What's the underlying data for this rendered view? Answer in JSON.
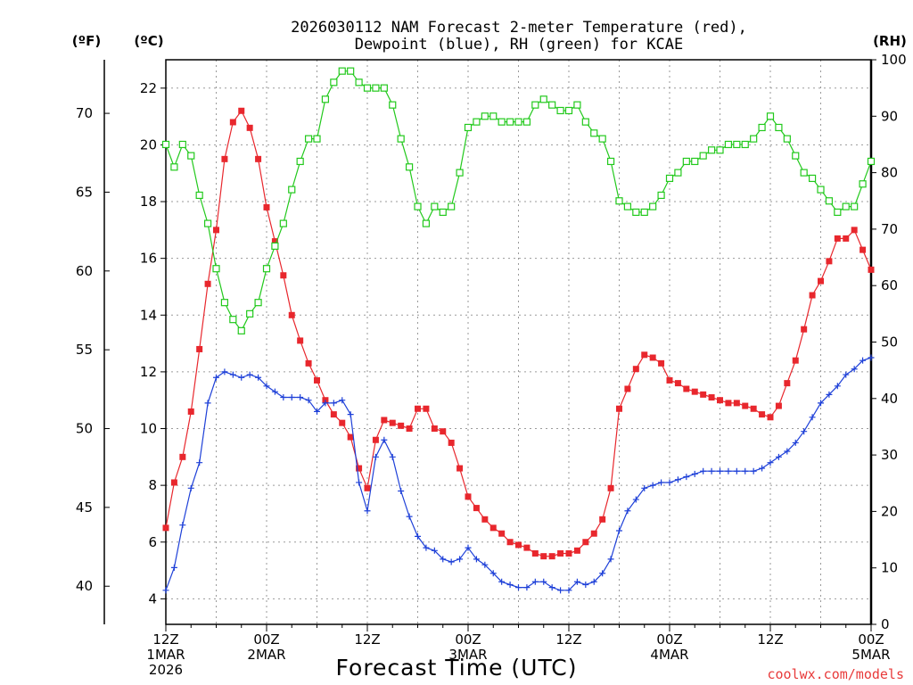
{
  "chart_data": {
    "type": "line",
    "title_line1": "2026030112 NAM Forecast 2-meter Temperature (red),",
    "title_line2": "Dewpoint (blue), RH (green) for KCAE",
    "xlabel": "Forecast Time (UTC)",
    "credit": "coolwx.com/models",
    "axes": {
      "fahrenheit": {
        "label": "(ºF)",
        "ticks": [
          40,
          45,
          50,
          55,
          60,
          65,
          70
        ]
      },
      "celsius": {
        "label": "(ºC)",
        "range": [
          3.1,
          23.0
        ],
        "ticks": [
          4,
          6,
          8,
          10,
          12,
          14,
          16,
          18,
          20,
          22
        ]
      },
      "rh": {
        "label": "(RH)",
        "range": [
          0,
          100
        ],
        "ticks": [
          0,
          10,
          20,
          30,
          40,
          50,
          60,
          70,
          80,
          90,
          100
        ]
      },
      "x": {
        "range_hours": [
          0,
          84
        ],
        "ticks": [
          {
            "hour": 0,
            "lines": [
              "12Z",
              "1MAR",
              "2026"
            ]
          },
          {
            "hour": 12,
            "lines": [
              "00Z",
              "2MAR"
            ]
          },
          {
            "hour": 24,
            "lines": [
              "12Z"
            ]
          },
          {
            "hour": 36,
            "lines": [
              "00Z",
              "3MAR"
            ]
          },
          {
            "hour": 48,
            "lines": [
              "12Z"
            ]
          },
          {
            "hour": 60,
            "lines": [
              "00Z",
              "4MAR"
            ]
          },
          {
            "hour": 72,
            "lines": [
              "12Z"
            ]
          },
          {
            "hour": 84,
            "lines": [
              "00Z",
              "5MAR"
            ]
          }
        ]
      }
    },
    "grid": true,
    "series": [
      {
        "name": "Temperature",
        "color": "#e8272d",
        "marker": "filled-square",
        "points": [
          [
            0,
            6.5
          ],
          [
            1,
            8.1
          ],
          [
            2,
            9.0
          ],
          [
            3,
            10.6
          ],
          [
            4,
            12.8
          ],
          [
            5,
            15.1
          ],
          [
            6,
            17.0
          ],
          [
            7,
            19.5
          ],
          [
            8,
            20.8
          ],
          [
            9,
            21.2
          ],
          [
            10,
            20.6
          ],
          [
            11,
            19.5
          ],
          [
            12,
            17.8
          ],
          [
            13,
            16.6
          ],
          [
            14,
            15.4
          ],
          [
            15,
            14.0
          ],
          [
            16,
            13.1
          ],
          [
            17,
            12.3
          ],
          [
            18,
            11.7
          ],
          [
            19,
            11.0
          ],
          [
            20,
            10.5
          ],
          [
            21,
            10.2
          ],
          [
            22,
            9.7
          ],
          [
            23,
            8.6
          ],
          [
            24,
            7.9
          ],
          [
            25,
            9.6
          ],
          [
            26,
            10.3
          ],
          [
            27,
            10.2
          ],
          [
            28,
            10.1
          ],
          [
            29,
            10.0
          ],
          [
            30,
            10.7
          ],
          [
            31,
            10.7
          ],
          [
            32,
            10.0
          ],
          [
            33,
            9.9
          ],
          [
            34,
            9.5
          ],
          [
            35,
            8.6
          ],
          [
            36,
            7.6
          ],
          [
            37,
            7.2
          ],
          [
            38,
            6.8
          ],
          [
            39,
            6.5
          ],
          [
            40,
            6.3
          ],
          [
            41,
            6.0
          ],
          [
            42,
            5.9
          ],
          [
            43,
            5.8
          ],
          [
            44,
            5.6
          ],
          [
            45,
            5.5
          ],
          [
            46,
            5.5
          ],
          [
            47,
            5.6
          ],
          [
            48,
            5.6
          ],
          [
            49,
            5.7
          ],
          [
            50,
            6.0
          ],
          [
            51,
            6.3
          ],
          [
            52,
            6.8
          ],
          [
            53,
            7.9
          ],
          [
            54,
            10.7
          ],
          [
            55,
            11.4
          ],
          [
            56,
            12.1
          ],
          [
            57,
            12.6
          ],
          [
            58,
            12.5
          ],
          [
            59,
            12.3
          ],
          [
            60,
            11.7
          ],
          [
            61,
            11.6
          ],
          [
            62,
            11.4
          ],
          [
            63,
            11.3
          ],
          [
            64,
            11.2
          ],
          [
            65,
            11.1
          ],
          [
            66,
            11.0
          ],
          [
            67,
            10.9
          ],
          [
            68,
            10.9
          ],
          [
            69,
            10.8
          ],
          [
            70,
            10.7
          ],
          [
            71,
            10.5
          ],
          [
            72,
            10.4
          ],
          [
            73,
            10.8
          ],
          [
            74,
            11.6
          ],
          [
            75,
            12.4
          ],
          [
            76,
            13.5
          ],
          [
            77,
            14.7
          ],
          [
            78,
            15.2
          ],
          [
            79,
            15.9
          ],
          [
            80,
            16.7
          ],
          [
            81,
            16.7
          ],
          [
            82,
            17.0
          ],
          [
            83,
            16.3
          ],
          [
            84,
            15.6
          ]
        ]
      },
      {
        "name": "Dewpoint",
        "color": "#1e40d8",
        "marker": "plus",
        "points": [
          [
            0,
            4.3
          ],
          [
            1,
            5.1
          ],
          [
            2,
            6.6
          ],
          [
            3,
            7.9
          ],
          [
            4,
            8.8
          ],
          [
            5,
            10.9
          ],
          [
            6,
            11.8
          ],
          [
            7,
            12.0
          ],
          [
            8,
            11.9
          ],
          [
            9,
            11.8
          ],
          [
            10,
            11.9
          ],
          [
            11,
            11.8
          ],
          [
            12,
            11.5
          ],
          [
            13,
            11.3
          ],
          [
            14,
            11.1
          ],
          [
            15,
            11.1
          ],
          [
            16,
            11.1
          ],
          [
            17,
            11.0
          ],
          [
            18,
            10.6
          ],
          [
            19,
            10.9
          ],
          [
            20,
            10.9
          ],
          [
            21,
            11.0
          ],
          [
            22,
            10.5
          ],
          [
            23,
            8.1
          ],
          [
            24,
            7.1
          ],
          [
            25,
            9.0
          ],
          [
            26,
            9.6
          ],
          [
            27,
            9.0
          ],
          [
            28,
            7.8
          ],
          [
            29,
            6.9
          ],
          [
            30,
            6.2
          ],
          [
            31,
            5.8
          ],
          [
            32,
            5.7
          ],
          [
            33,
            5.4
          ],
          [
            34,
            5.3
          ],
          [
            35,
            5.4
          ],
          [
            36,
            5.8
          ],
          [
            37,
            5.4
          ],
          [
            38,
            5.2
          ],
          [
            39,
            4.9
          ],
          [
            40,
            4.6
          ],
          [
            41,
            4.5
          ],
          [
            42,
            4.4
          ],
          [
            43,
            4.4
          ],
          [
            44,
            4.6
          ],
          [
            45,
            4.6
          ],
          [
            46,
            4.4
          ],
          [
            47,
            4.3
          ],
          [
            48,
            4.3
          ],
          [
            49,
            4.6
          ],
          [
            50,
            4.5
          ],
          [
            51,
            4.6
          ],
          [
            52,
            4.9
          ],
          [
            53,
            5.4
          ],
          [
            54,
            6.4
          ],
          [
            55,
            7.1
          ],
          [
            56,
            7.5
          ],
          [
            57,
            7.9
          ],
          [
            58,
            8.0
          ],
          [
            59,
            8.1
          ],
          [
            60,
            8.1
          ],
          [
            61,
            8.2
          ],
          [
            62,
            8.3
          ],
          [
            63,
            8.4
          ],
          [
            64,
            8.5
          ],
          [
            65,
            8.5
          ],
          [
            66,
            8.5
          ],
          [
            67,
            8.5
          ],
          [
            68,
            8.5
          ],
          [
            69,
            8.5
          ],
          [
            70,
            8.5
          ],
          [
            71,
            8.6
          ],
          [
            72,
            8.8
          ],
          [
            73,
            9.0
          ],
          [
            74,
            9.2
          ],
          [
            75,
            9.5
          ],
          [
            76,
            9.9
          ],
          [
            77,
            10.4
          ],
          [
            78,
            10.9
          ],
          [
            79,
            11.2
          ],
          [
            80,
            11.5
          ],
          [
            81,
            11.9
          ],
          [
            82,
            12.1
          ],
          [
            83,
            12.4
          ],
          [
            84,
            12.5
          ]
        ]
      },
      {
        "name": "RH",
        "color": "#22c91c",
        "marker": "open-square",
        "points": [
          [
            0,
            85
          ],
          [
            1,
            81
          ],
          [
            2,
            85
          ],
          [
            3,
            83
          ],
          [
            4,
            76
          ],
          [
            5,
            71
          ],
          [
            6,
            63
          ],
          [
            7,
            57
          ],
          [
            8,
            54
          ],
          [
            9,
            52
          ],
          [
            10,
            55
          ],
          [
            11,
            57
          ],
          [
            12,
            63
          ],
          [
            13,
            67
          ],
          [
            14,
            71
          ],
          [
            15,
            77
          ],
          [
            16,
            82
          ],
          [
            17,
            86
          ],
          [
            18,
            86
          ],
          [
            19,
            93
          ],
          [
            20,
            96
          ],
          [
            21,
            98
          ],
          [
            22,
            98
          ],
          [
            23,
            96
          ],
          [
            24,
            95
          ],
          [
            25,
            95
          ],
          [
            26,
            95
          ],
          [
            27,
            92
          ],
          [
            28,
            86
          ],
          [
            29,
            81
          ],
          [
            30,
            74
          ],
          [
            31,
            71
          ],
          [
            32,
            74
          ],
          [
            33,
            73
          ],
          [
            34,
            74
          ],
          [
            35,
            80
          ],
          [
            36,
            88
          ],
          [
            37,
            89
          ],
          [
            38,
            90
          ],
          [
            39,
            90
          ],
          [
            40,
            89
          ],
          [
            41,
            89
          ],
          [
            42,
            89
          ],
          [
            43,
            89
          ],
          [
            44,
            92
          ],
          [
            45,
            93
          ],
          [
            46,
            92
          ],
          [
            47,
            91
          ],
          [
            48,
            91
          ],
          [
            49,
            92
          ],
          [
            50,
            89
          ],
          [
            51,
            87
          ],
          [
            52,
            86
          ],
          [
            53,
            82
          ],
          [
            54,
            75
          ],
          [
            55,
            74
          ],
          [
            56,
            73
          ],
          [
            57,
            73
          ],
          [
            58,
            74
          ],
          [
            59,
            76
          ],
          [
            60,
            79
          ],
          [
            61,
            80
          ],
          [
            62,
            82
          ],
          [
            63,
            82
          ],
          [
            64,
            83
          ],
          [
            65,
            84
          ],
          [
            66,
            84
          ],
          [
            67,
            85
          ],
          [
            68,
            85
          ],
          [
            69,
            85
          ],
          [
            70,
            86
          ],
          [
            71,
            88
          ],
          [
            72,
            90
          ],
          [
            73,
            88
          ],
          [
            74,
            86
          ],
          [
            75,
            83
          ],
          [
            76,
            80
          ],
          [
            77,
            79
          ],
          [
            78,
            77
          ],
          [
            79,
            75
          ],
          [
            80,
            73
          ],
          [
            81,
            74
          ],
          [
            82,
            74
          ],
          [
            83,
            78
          ],
          [
            84,
            82
          ]
        ]
      }
    ]
  }
}
